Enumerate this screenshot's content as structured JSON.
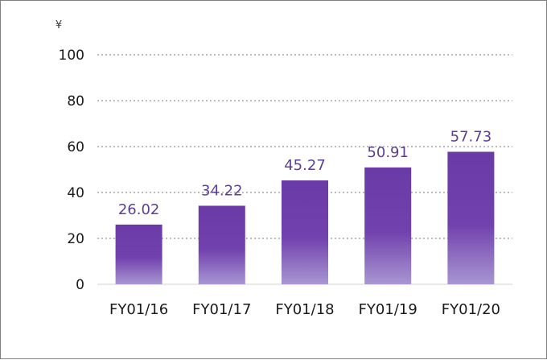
{
  "chart_data": {
    "type": "bar",
    "categories": [
      "FY01/16",
      "FY01/17",
      "FY01/18",
      "FY01/19",
      "FY01/20"
    ],
    "values": [
      26.02,
      34.22,
      45.27,
      50.91,
      57.73
    ],
    "value_labels": [
      "26.02",
      "34.22",
      "45.27",
      "50.91",
      "57.73"
    ],
    "y_unit": "¥",
    "ylim": [
      0,
      100
    ],
    "yticks": [
      0,
      20,
      40,
      60,
      80,
      100
    ],
    "grid": true,
    "legend": "none",
    "colors": {
      "bar_top": "#6a3aa6",
      "bar_mid": "#7141ad",
      "bar_bottom": "#a896d2",
      "data_label": "#5b3f95",
      "grid": "#a6a6a6"
    }
  }
}
